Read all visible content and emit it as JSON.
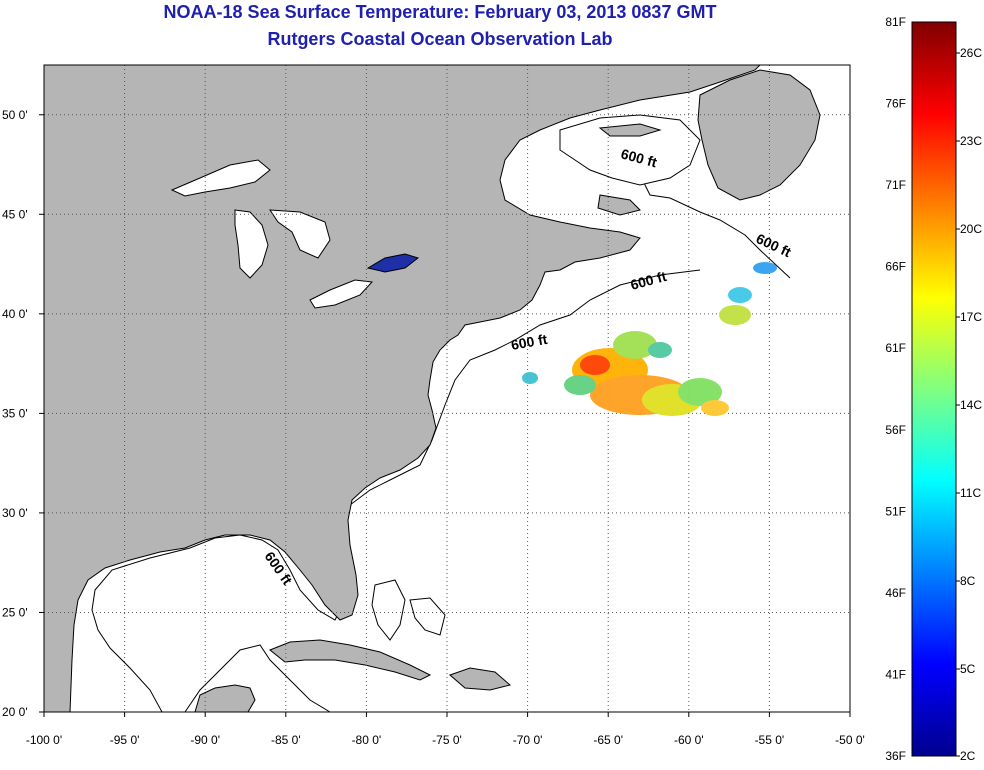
{
  "title": {
    "line1": "NOAA-18 Sea Surface Temperature:  February 03, 2013 0837 GMT",
    "line2": "Rutgers Coastal Ocean Observation Lab",
    "color": "#1f1fb0"
  },
  "map": {
    "lon_range": [
      -100,
      -50
    ],
    "lat_range": [
      20,
      52.5
    ],
    "lon_ticks": [
      {
        "value": -100,
        "label": "-100 0'"
      },
      {
        "value": -95,
        "label": "-95 0'"
      },
      {
        "value": -90,
        "label": "-90 0'"
      },
      {
        "value": -85,
        "label": "-85 0'"
      },
      {
        "value": -80,
        "label": "-80 0'"
      },
      {
        "value": -75,
        "label": "-75 0'"
      },
      {
        "value": -70,
        "label": "-70 0'"
      },
      {
        "value": -65,
        "label": "-65 0'"
      },
      {
        "value": -60,
        "label": "-60 0'"
      },
      {
        "value": -55,
        "label": "-55 0'"
      },
      {
        "value": -50,
        "label": "-50 0'"
      }
    ],
    "lat_ticks": [
      {
        "value": 50,
        "label": "50 0'"
      },
      {
        "value": 45,
        "label": "45 0'"
      },
      {
        "value": 40,
        "label": "40 0'"
      },
      {
        "value": 35,
        "label": "35 0'"
      },
      {
        "value": 30,
        "label": "30 0'"
      },
      {
        "value": 25,
        "label": "25 0'"
      },
      {
        "value": 20,
        "label": "20 0'"
      }
    ],
    "depth_labels": [
      "600 ft",
      "600 ft",
      "600 ft",
      "600 ft",
      "600 ft"
    ],
    "land_color": "#b5b5b5",
    "grid": true
  },
  "colorbar": {
    "fahrenheit_labels": [
      "81F",
      "76F",
      "71F",
      "66F",
      "61F",
      "56F",
      "51F",
      "46F",
      "41F",
      "36F"
    ],
    "celsius_labels": [
      "26C",
      "23C",
      "20C",
      "17C",
      "14C",
      "11C",
      "8C",
      "5C",
      "2C"
    ],
    "colormap": "jet"
  }
}
